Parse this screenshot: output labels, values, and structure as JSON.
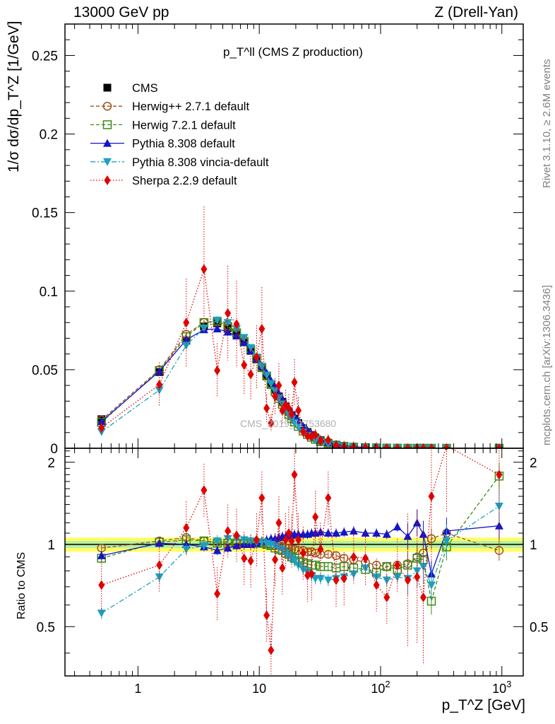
{
  "header": {
    "left": "13000 GeV pp",
    "right": "Z (Drell-Yan)"
  },
  "side": {
    "rivet": "Rivet 3.1.10, ≥ 2.6M events",
    "mcplots": "mcplots.cern.ch [arXiv:1306.3436]"
  },
  "axes": {
    "top_ylabel": "1/σ dσ/dp_T^Z [1/GeV]",
    "bottom_ylabel": "Ratio to CMS",
    "xlabel": "p_T^Z [GeV]"
  },
  "plot_title": "p_T^ll (CMS Z production)",
  "watermark": "CMS_2019_I1753680",
  "colors": {
    "cms": "#000000",
    "herwigpp": "#a0521a",
    "herwig7": "#3c8c14",
    "pythia": "#1414c8",
    "vincia": "#1ca0c0",
    "sherpa": "#e00000",
    "band_inner": "#ffff66",
    "band_outer": "#b8f0a0"
  },
  "chart_data": [
    {
      "type": "line",
      "panel": "main",
      "xscale": "log",
      "xlim": [
        0.25,
        1500
      ],
      "ylim": [
        0,
        0.27
      ],
      "x_ticks": [
        "1",
        "10",
        "10^2",
        "10^3"
      ],
      "y_ticks": [
        "0",
        "0.05",
        "0.1",
        "0.15",
        "0.2",
        "0.25"
      ],
      "legend_position": "top-left",
      "x": [
        0.5,
        1.5,
        2.5,
        3.5,
        4.5,
        5.5,
        6.5,
        7.5,
        8.5,
        9.5,
        10.5,
        11.5,
        12.5,
        13.5,
        14.5,
        15.5,
        16.5,
        17.5,
        18.5,
        19.5,
        21,
        23,
        25,
        27,
        29,
        32,
        37,
        43,
        50,
        60,
        75,
        92.5,
        112.5,
        137.5,
        167.5,
        200,
        225,
        262.5,
        350,
        950
      ],
      "series": [
        {
          "name": "CMS",
          "marker": "square",
          "values": [
            0.0185,
            0.0485,
            0.0685,
            0.0775,
            0.0795,
            0.0765,
            0.0725,
            0.0675,
            0.062,
            0.0565,
            0.051,
            0.046,
            0.041,
            0.037,
            0.033,
            0.0295,
            0.0265,
            0.0235,
            0.021,
            0.0188,
            0.016,
            0.0128,
            0.0103,
            0.0083,
            0.0068,
            0.0051,
            0.0035,
            0.0023,
            0.0015,
            0.0009,
            0.0005,
            0.00025,
            0.00013,
            7e-05,
            4e-05,
            2e-05,
            1.2e-05,
            7e-06,
            3e-06,
            5e-07
          ]
        },
        {
          "name": "Herwig++ 2.7.1 default",
          "marker": "open-circle",
          "values": [
            0.018,
            0.05,
            0.0725,
            0.08,
            0.081,
            0.078,
            0.0735,
            0.068,
            0.0625,
            0.057,
            0.0515,
            0.046,
            0.041,
            0.0368,
            0.0328,
            0.029,
            0.0258,
            0.0228,
            0.0202,
            0.018,
            0.0152,
            0.0121,
            0.0097,
            0.0078,
            0.0063,
            0.0047,
            0.0032,
            0.0021,
            0.0013,
            0.0008,
            0.00043,
            0.00021,
            0.00011,
            6e-05,
            3.4e-05,
            1.8e-05,
            1.1e-05,
            7.4e-06,
            3.3e-06,
            4.8e-07
          ]
        },
        {
          "name": "Herwig 7.2.1 default",
          "marker": "open-square",
          "values": [
            0.0165,
            0.0495,
            0.071,
            0.08,
            0.0805,
            0.0775,
            0.0735,
            0.068,
            0.0628,
            0.0572,
            0.0515,
            0.046,
            0.0405,
            0.036,
            0.0318,
            0.028,
            0.0246,
            0.0215,
            0.0189,
            0.0167,
            0.0139,
            0.011,
            0.0088,
            0.007,
            0.0057,
            0.0042,
            0.0029,
            0.0019,
            0.0012,
            0.0007,
            0.00041,
            0.0002,
            0.00011,
            5.6e-05,
            3.4e-05,
            1.8e-05,
            1.06e-05,
            4.3e-06,
            2.9e-06,
            8.7e-07
          ]
        },
        {
          "name": "Pythia 8.308 default",
          "marker": "triangle-up",
          "values": [
            0.017,
            0.049,
            0.069,
            0.0755,
            0.076,
            0.074,
            0.0715,
            0.0675,
            0.062,
            0.057,
            0.0525,
            0.048,
            0.043,
            0.039,
            0.035,
            0.0315,
            0.0285,
            0.0255,
            0.0228,
            0.0205,
            0.0175,
            0.014,
            0.0113,
            0.0091,
            0.0075,
            0.0057,
            0.0039,
            0.0025,
            0.0017,
            0.001,
            0.00055,
            0.00027,
            0.00014,
            8.2e-05,
            4.3e-05,
            2.4e-05,
            1.3e-05,
            5.9e-06,
            3.3e-06,
            5.8e-07
          ]
        },
        {
          "name": "Pythia 8.308 vincia-default",
          "marker": "triangle-down",
          "values": [
            0.0105,
            0.037,
            0.0655,
            0.0765,
            0.0815,
            0.08,
            0.076,
            0.0705,
            0.064,
            0.058,
            0.052,
            0.0465,
            0.0412,
            0.0365,
            0.032,
            0.0282,
            0.0246,
            0.0214,
            0.0186,
            0.0163,
            0.0134,
            0.0103,
            0.0081,
            0.0064,
            0.0051,
            0.0038,
            0.0026,
            0.0017,
            0.0011,
            0.0007,
            0.00042,
            0.00019,
            0.0001,
            5.3e-05,
            3e-05,
            1.6e-05,
            1e-05,
            5e-06,
            2.9e-06,
            6.8e-07
          ]
        },
        {
          "name": "Sherpa 2.2.9 default",
          "marker": "diamond",
          "values": [
            0.013,
            0.0405,
            0.08,
            0.114,
            0.0495,
            0.086,
            0.079,
            0.053,
            0.047,
            0.058,
            0.076,
            0.0255,
            0.016,
            0.033,
            0.04,
            0.024,
            0.0275,
            0.0255,
            0.0215,
            0.042,
            0.024,
            0.0105,
            0.0078,
            0.0075,
            0.0085,
            0.0048,
            0.0052,
            0.0017,
            0.0011,
            0.0008,
            0.00045,
            0.00018,
            9e-05,
            6e-05,
            2.8e-05,
            3e-05,
            3.5e-05,
            2.8e-05,
            7e-06,
            9e-07
          ]
        }
      ]
    },
    {
      "type": "line",
      "panel": "ratio",
      "xscale": "log",
      "xlim": [
        0.25,
        1500
      ],
      "ylim": [
        0.33,
        2.25
      ],
      "x_ticks": [
        "1",
        "10",
        "10^2",
        "10^3"
      ],
      "y_ticks": [
        "0.5",
        "1",
        "2"
      ],
      "reference_line": 1,
      "x": [
        0.5,
        1.5,
        2.5,
        3.5,
        4.5,
        5.5,
        6.5,
        7.5,
        8.5,
        9.5,
        10.5,
        11.5,
        12.5,
        13.5,
        14.5,
        15.5,
        16.5,
        17.5,
        18.5,
        19.5,
        21,
        23,
        25,
        27,
        29,
        32,
        37,
        43,
        50,
        60,
        75,
        92.5,
        112.5,
        137.5,
        167.5,
        200,
        225,
        262.5,
        350,
        950
      ],
      "series": [
        {
          "name": "Herwig++ 2.7.1 default",
          "values": [
            0.97,
            1.03,
            1.06,
            1.03,
            1.02,
            1.02,
            1.01,
            1.01,
            1.01,
            1.01,
            1.01,
            1.0,
            1.0,
            0.99,
            0.99,
            0.98,
            0.97,
            0.97,
            0.96,
            0.96,
            0.95,
            0.95,
            0.94,
            0.94,
            0.93,
            0.92,
            0.92,
            0.91,
            0.89,
            0.88,
            0.86,
            0.84,
            0.83,
            0.84,
            0.85,
            0.9,
            0.93,
            1.05,
            1.1,
            0.95
          ]
        },
        {
          "name": "Herwig 7.2.1 default",
          "values": [
            0.89,
            1.02,
            1.04,
            1.03,
            1.01,
            1.01,
            1.01,
            1.01,
            1.01,
            1.01,
            1.01,
            1.0,
            0.99,
            0.97,
            0.96,
            0.95,
            0.93,
            0.92,
            0.9,
            0.89,
            0.87,
            0.86,
            0.85,
            0.84,
            0.84,
            0.83,
            0.83,
            0.82,
            0.83,
            0.82,
            0.81,
            0.79,
            0.83,
            0.81,
            0.84,
            0.89,
            0.88,
            0.62,
            0.98,
            1.78
          ]
        },
        {
          "name": "Pythia 8.308 default",
          "values": [
            0.91,
            1.01,
            1.0,
            0.98,
            0.95,
            0.97,
            0.99,
            1.0,
            1.0,
            1.01,
            1.03,
            1.04,
            1.05,
            1.05,
            1.06,
            1.07,
            1.07,
            1.08,
            1.08,
            1.09,
            1.09,
            1.09,
            1.09,
            1.1,
            1.1,
            1.11,
            1.1,
            1.1,
            1.11,
            1.12,
            1.1,
            1.1,
            1.09,
            1.16,
            1.07,
            1.2,
            1.09,
            0.78,
            1.12,
            1.17
          ]
        },
        {
          "name": "Pythia 8.308 vincia-default",
          "values": [
            0.56,
            0.76,
            0.96,
            0.99,
            1.03,
            1.05,
            1.05,
            1.04,
            1.03,
            1.02,
            1.02,
            1.01,
            1.0,
            0.99,
            0.97,
            0.96,
            0.93,
            0.91,
            0.89,
            0.87,
            0.84,
            0.81,
            0.79,
            0.77,
            0.75,
            0.75,
            0.74,
            0.75,
            0.76,
            0.78,
            0.82,
            0.76,
            0.74,
            0.76,
            0.75,
            0.8,
            0.83,
            0.71,
            1.03,
            1.38
          ]
        },
        {
          "name": "Sherpa 2.2.9 default",
          "values": [
            0.71,
            0.84,
            1.15,
            1.58,
            0.66,
            1.12,
            1.08,
            0.89,
            0.87,
            1.04,
            1.48,
            0.55,
            0.41,
            0.88,
            1.2,
            0.82,
            1.04,
            1.1,
            1.03,
            1.8,
            1.04,
            0.93,
            0.77,
            0.78,
            1.26,
            0.96,
            1.48,
            0.74,
            0.75,
            0.9,
            0.89,
            0.71,
            0.64,
            0.84,
            0.74,
            0.76,
            0.64,
            1.5,
            2.3,
            1.8
          ]
        }
      ]
    }
  ]
}
